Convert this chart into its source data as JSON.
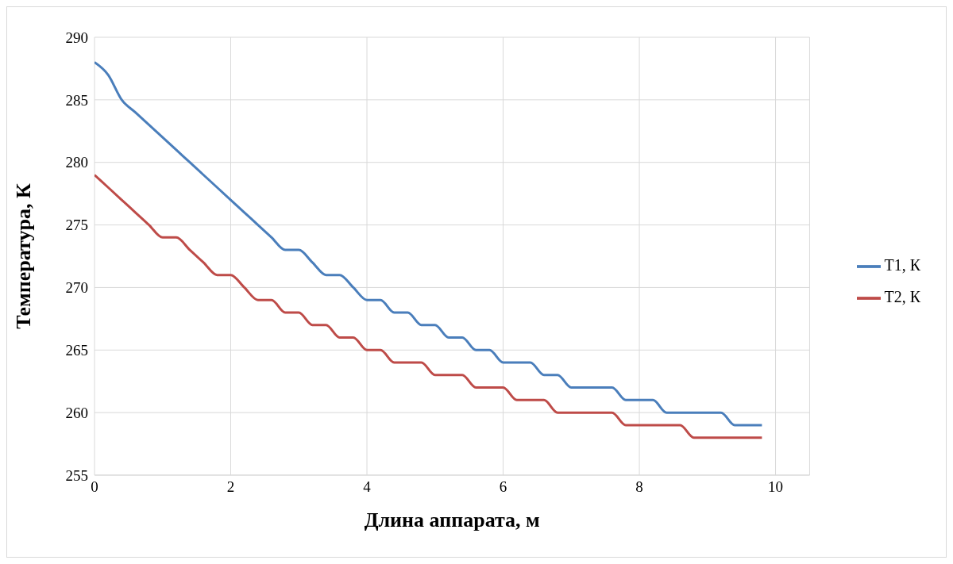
{
  "chart_data": {
    "type": "line",
    "xlabel": "Длина аппарата, м",
    "ylabel": "Температура, К",
    "x": [
      0,
      0.2,
      0.4,
      0.6,
      0.8,
      1,
      1.2,
      1.4,
      1.6,
      1.8,
      2,
      2.2,
      2.4,
      2.6,
      2.8,
      3,
      3.2,
      3.4,
      3.6,
      3.8,
      4,
      4.2,
      4.4,
      4.6,
      4.8,
      5,
      5.2,
      5.4,
      5.6,
      5.8,
      6,
      6.2,
      6.4,
      6.6,
      6.8,
      7,
      7.2,
      7.4,
      7.6,
      7.8,
      8,
      8.2,
      8.4,
      8.6,
      8.8,
      9,
      9.2,
      9.4,
      9.6,
      9.8
    ],
    "series": [
      {
        "name": "T1, К",
        "color": "#4a7ebb",
        "values": [
          288,
          287,
          285,
          284,
          283,
          282,
          281,
          280,
          279,
          278,
          277,
          276,
          275,
          274,
          273,
          273,
          272,
          271,
          271,
          270,
          269,
          269,
          268,
          268,
          267,
          267,
          266,
          266,
          265,
          265,
          264,
          264,
          264,
          263,
          263,
          262,
          262,
          262,
          262,
          261,
          261,
          261,
          260,
          260,
          260,
          260,
          260,
          259,
          259,
          259
        ]
      },
      {
        "name": "T2, К",
        "color": "#be4b48",
        "values": [
          279,
          278,
          277,
          276,
          275,
          274,
          274,
          273,
          272,
          271,
          271,
          270,
          269,
          269,
          268,
          268,
          267,
          267,
          266,
          266,
          265,
          265,
          264,
          264,
          264,
          263,
          263,
          263,
          262,
          262,
          262,
          261,
          261,
          261,
          260,
          260,
          260,
          260,
          260,
          259,
          259,
          259,
          259,
          259,
          258,
          258,
          258,
          258,
          258,
          258
        ]
      }
    ],
    "xlim": [
      0,
      10.5
    ],
    "xticks": [
      0,
      2,
      4,
      6,
      8,
      10
    ],
    "ylim": [
      255,
      290
    ],
    "yticks": [
      255,
      260,
      265,
      270,
      275,
      280,
      285,
      290
    ],
    "grid": true,
    "legend": "right",
    "marker": "none",
    "line_style": "solid"
  }
}
